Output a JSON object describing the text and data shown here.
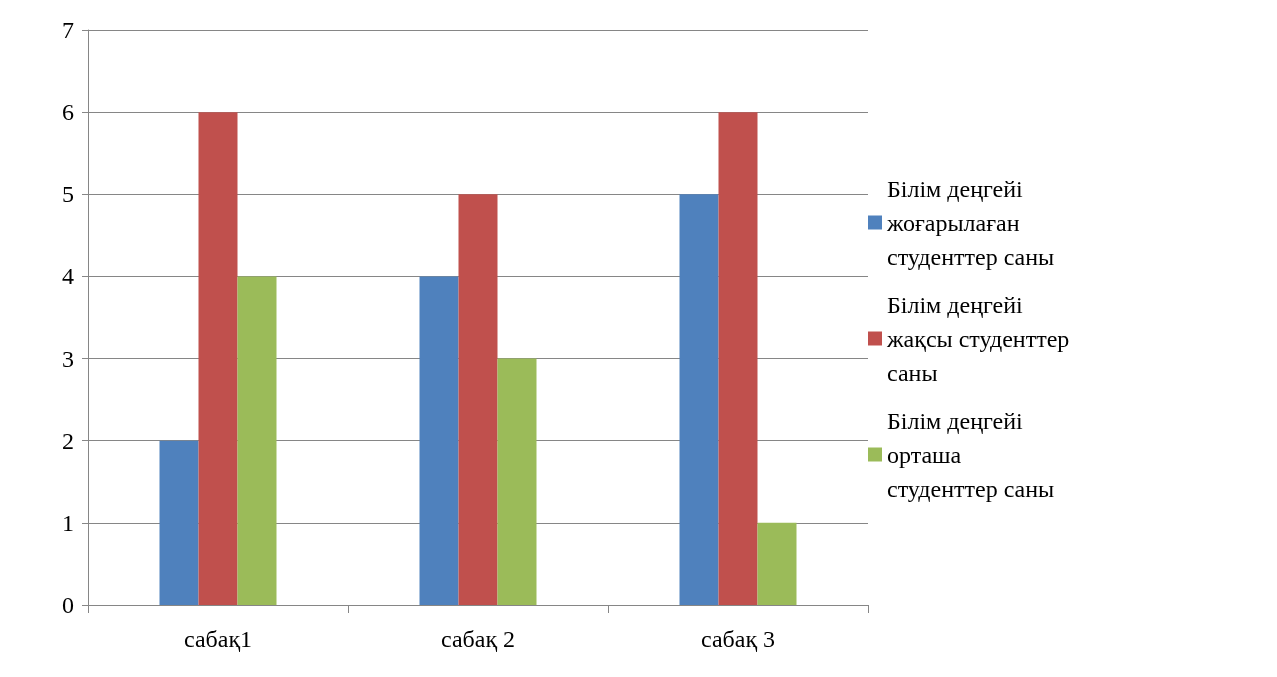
{
  "chart_data": {
    "type": "bar",
    "categories": [
      "сабақ1",
      "сабақ 2",
      "сабақ 3"
    ],
    "series": [
      {
        "name": "Білім деңгейі жоғарылаған студенттер саны",
        "color": "#4f81bd",
        "values": [
          2,
          4,
          5
        ]
      },
      {
        "name": "Білім деңгейі жақсы студенттер саны",
        "color": "#c0504d",
        "values": [
          6,
          5,
          6
        ]
      },
      {
        "name": "Білім деңгейі орташа студенттер саны",
        "color": "#9bbb59",
        "values": [
          4,
          3,
          1
        ]
      }
    ],
    "ylim": [
      0,
      7
    ],
    "yticks": [
      0,
      1,
      2,
      3,
      4,
      5,
      6,
      7
    ],
    "grid": "y",
    "legend": "right"
  }
}
